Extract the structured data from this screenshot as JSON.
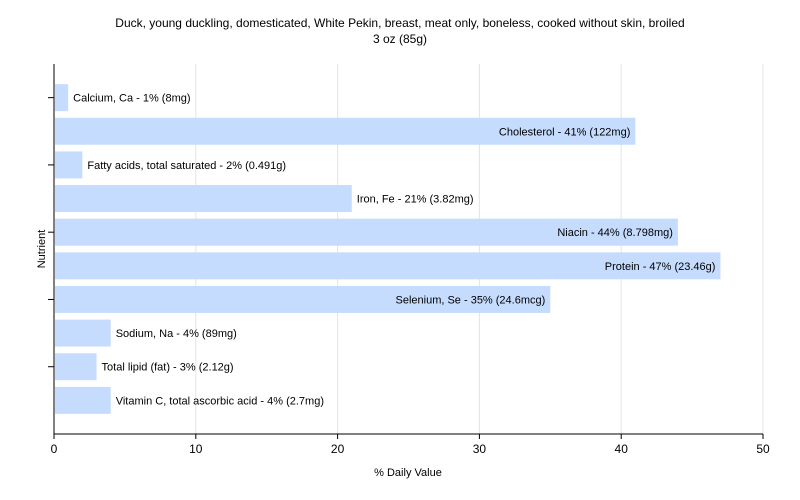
{
  "chart_data": {
    "type": "bar",
    "orientation": "horizontal",
    "title_lines": [
      "Duck, young duckling, domesticated, White Pekin, breast, meat only, boneless, cooked without skin, broiled",
      "3 oz (85g)"
    ],
    "xlabel": "% Daily Value",
    "ylabel": "Nutrient",
    "xlim": [
      0,
      50
    ],
    "xticks": [
      0,
      10,
      20,
      30,
      40,
      50
    ],
    "grid": true,
    "colors": {
      "bar": "#c6dcfe",
      "grid": "#e4e4e4",
      "axis": "#000000"
    },
    "categories": [
      "Calcium, Ca",
      "Cholesterol",
      "Fatty acids, total saturated",
      "Iron, Fe",
      "Niacin",
      "Protein",
      "Selenium, Se",
      "Sodium, Na",
      "Total lipid (fat)",
      "Vitamin C, total ascorbic acid"
    ],
    "values": [
      1,
      41,
      2,
      21,
      44,
      47,
      35,
      4,
      3,
      4
    ],
    "labels": [
      "Calcium, Ca - 1% (8mg)",
      "Cholesterol - 41% (122mg)",
      "Fatty acids, total saturated - 2% (0.491g)",
      "Iron, Fe - 21% (3.82mg)",
      "Niacin - 44% (8.798mg)",
      "Protein - 47% (23.46g)",
      "Selenium, Se - 35% (24.6mcg)",
      "Sodium, Na - 4% (89mg)",
      "Total lipid (fat) - 3% (2.12g)",
      "Vitamin C, total ascorbic acid - 4% (2.7mg)"
    ]
  }
}
